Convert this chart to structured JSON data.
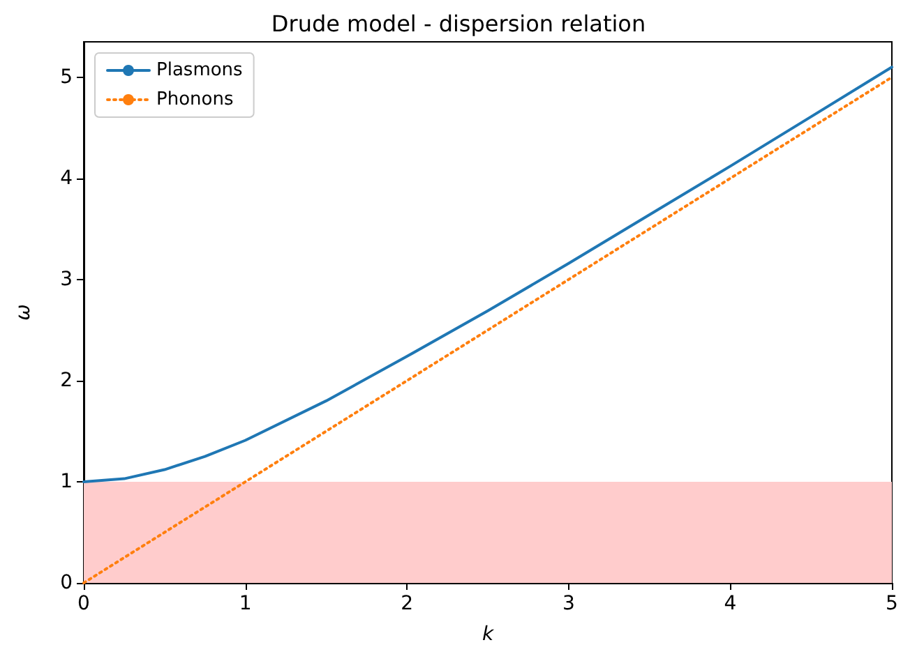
{
  "chart_data": {
    "type": "line",
    "title": "Drude model - dispersion relation",
    "xlabel": "k",
    "ylabel": "ω",
    "xlim": [
      0,
      5
    ],
    "ylim": [
      0,
      5.35
    ],
    "xticks": [
      0,
      1,
      2,
      3,
      4,
      5
    ],
    "yticks": [
      0,
      1,
      2,
      3,
      4,
      5
    ],
    "grid": false,
    "legend": "top left",
    "marker": "none",
    "series": [
      {
        "name": "Plasmons",
        "color": "#1f77b4",
        "line_style": "solid",
        "x": [
          0,
          0.25,
          0.5,
          0.75,
          1,
          1.5,
          2,
          2.5,
          3,
          3.5,
          4,
          4.5,
          5
        ],
        "values": [
          1,
          1.03,
          1.12,
          1.25,
          1.41,
          1.8,
          2.24,
          2.69,
          3.16,
          3.64,
          4.12,
          4.61,
          5.1
        ]
      },
      {
        "name": "Phonons",
        "color": "#ff7f0e",
        "line_style": "dotted",
        "x": [
          0,
          1,
          2,
          3,
          4,
          5
        ],
        "values": [
          0,
          1,
          2,
          3,
          4,
          5
        ]
      }
    ],
    "bands": [
      {
        "axis": "y",
        "from": 0,
        "to": 1,
        "color": "#ffcccc"
      }
    ]
  }
}
